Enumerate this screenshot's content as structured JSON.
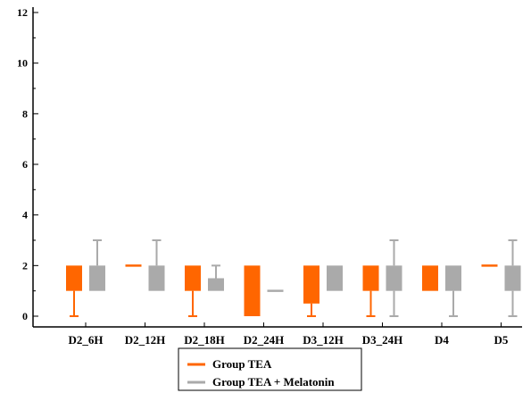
{
  "chart_data": {
    "type": "box",
    "categories": [
      "D2_6H",
      "D2_12H",
      "D2_18H",
      "D2_24H",
      "D3_12H",
      "D3_24H",
      "D4",
      "D5"
    ],
    "ylim": [
      0,
      12
    ],
    "yticks": [
      0,
      2,
      4,
      6,
      8,
      10,
      12
    ],
    "grid": false,
    "legend_position": "bottom",
    "series": [
      {
        "name": "Group TEA",
        "color": "#ff6600",
        "boxes": [
          {
            "whisker_low": 0,
            "q1": 1,
            "median": 2,
            "q3": 2,
            "whisker_high": 2
          },
          {
            "whisker_low": 2,
            "q1": 2,
            "median": 2,
            "q3": 2,
            "whisker_high": 2
          },
          {
            "whisker_low": 0,
            "q1": 1,
            "median": 2,
            "q3": 2,
            "whisker_high": 2
          },
          {
            "whisker_low": 0,
            "q1": 0,
            "median": 2,
            "q3": 2,
            "whisker_high": 2
          },
          {
            "whisker_low": 0,
            "q1": 0.5,
            "median": 2,
            "q3": 2,
            "whisker_high": 2
          },
          {
            "whisker_low": 0,
            "q1": 1,
            "median": 2,
            "q3": 2,
            "whisker_high": 2
          },
          {
            "whisker_low": 1,
            "q1": 1,
            "median": 2,
            "q3": 2,
            "whisker_high": 2
          },
          {
            "whisker_low": 2,
            "q1": 2,
            "median": 2,
            "q3": 2,
            "whisker_high": 2
          }
        ]
      },
      {
        "name": "Group TEA + Melatonin",
        "color": "#aaaaaa",
        "boxes": [
          {
            "whisker_low": 1,
            "q1": 1,
            "median": 2,
            "q3": 2,
            "whisker_high": 3
          },
          {
            "whisker_low": 1,
            "q1": 1,
            "median": 2,
            "q3": 2,
            "whisker_high": 3
          },
          {
            "whisker_low": 1,
            "q1": 1,
            "median": 1,
            "q3": 1.5,
            "whisker_high": 2
          },
          {
            "whisker_low": 1,
            "q1": 1,
            "median": 1,
            "q3": 1,
            "whisker_high": 1
          },
          {
            "whisker_low": 1,
            "q1": 1,
            "median": 2,
            "q3": 2,
            "whisker_high": 2
          },
          {
            "whisker_low": 0,
            "q1": 1,
            "median": 2,
            "q3": 2,
            "whisker_high": 3
          },
          {
            "whisker_low": 0,
            "q1": 1,
            "median": 2,
            "q3": 2,
            "whisker_high": 2
          },
          {
            "whisker_low": 0,
            "q1": 1,
            "median": 2,
            "q3": 2,
            "whisker_high": 3
          }
        ]
      }
    ]
  }
}
